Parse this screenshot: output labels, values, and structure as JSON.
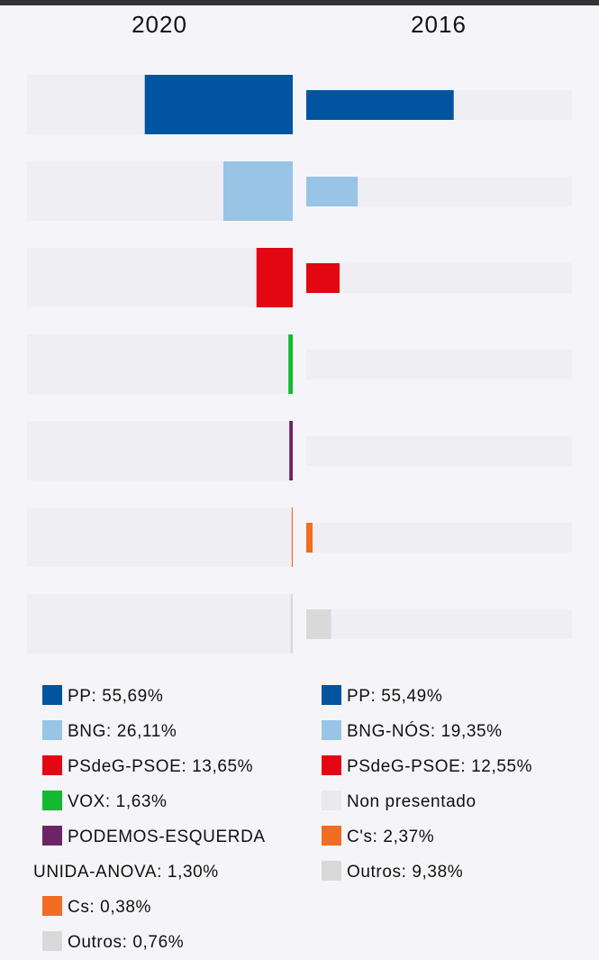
{
  "chart_data": [
    {
      "type": "bar",
      "direction": "left",
      "title": "2020",
      "xlim": [
        0,
        100
      ],
      "categories": [
        "PP: 55,69%",
        "BNG: 26,11%",
        "PSdeG-PSOE: 13,65%",
        "VOX: 1,63%",
        "PODEMOS-ESQUERDA UNIDA-ANOVA: 1,30%",
        "Cs: 0,38%",
        "Outros: 0,76%"
      ],
      "values": [
        55.69,
        26.11,
        13.65,
        1.63,
        1.3,
        0.38,
        0.76
      ],
      "colors": [
        "#0054a0",
        "#98c4e6",
        "#e30613",
        "#13b92f",
        "#6b2566",
        "#f26c21",
        "#d9d9d9"
      ]
    },
    {
      "type": "bar",
      "direction": "right",
      "title": "2016",
      "xlim": [
        0,
        100
      ],
      "categories": [
        "PP: 55,49%",
        "BNG-NÓS: 19,35%",
        "PSdeG-PSOE: 12,55%",
        "Non presentado",
        "C's: 2,37%",
        "Outros: 9,38%"
      ],
      "values": [
        55.49,
        19.35,
        12.55,
        null,
        2.37,
        9.38
      ],
      "colors": [
        "#0054a0",
        "#98c4e6",
        "#e30613",
        "#e9e9ee",
        "#f26c21",
        "#d9d9d9"
      ]
    }
  ]
}
